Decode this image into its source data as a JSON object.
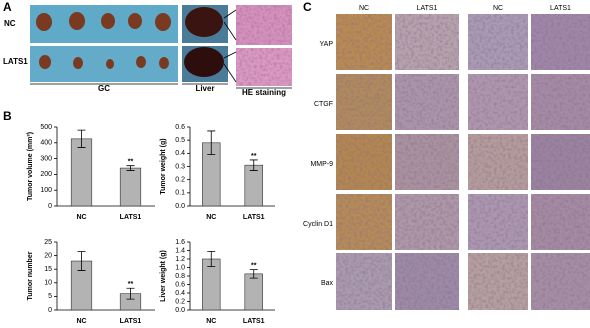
{
  "figure": {
    "panel_labels": [
      "A",
      "B",
      "C"
    ],
    "panel_a": {
      "row_labels": [
        "NC",
        "LATS1"
      ],
      "group_labels": [
        "GC",
        "Liver",
        "HE staining"
      ]
    },
    "panel_c": {
      "column_labels": [
        "NC",
        "LATS1",
        "NC",
        "LATS1"
      ],
      "row_labels": [
        "YAP",
        "CTGF",
        "MMP-9",
        "Cyclin D1",
        "Bax"
      ]
    }
  },
  "chart_data": [
    {
      "type": "bar",
      "ylabel": "Tumor volume (mm³)",
      "categories": [
        "NC",
        "LATS1"
      ],
      "values": [
        425,
        240
      ],
      "errors": [
        55,
        15
      ],
      "annotation": "**",
      "color": "#b3b3b3",
      "ylim": [
        0,
        500
      ],
      "yticks": [
        0,
        100,
        200,
        300,
        400,
        500
      ]
    },
    {
      "type": "bar",
      "ylabel": "Tumor weight (g)",
      "categories": [
        "NC",
        "LATS1"
      ],
      "values": [
        0.48,
        0.31
      ],
      "errors": [
        0.09,
        0.04
      ],
      "annotation": "**",
      "color": "#b3b3b3",
      "ylim": [
        0,
        0.6
      ],
      "yticks": [
        {
          "value": 0,
          "label": "0.0"
        },
        0.1,
        0.2,
        0.3,
        0.4,
        0.5,
        0.6
      ]
    },
    {
      "type": "bar",
      "ylabel": "Tumor number",
      "categories": [
        "NC",
        "LATS1"
      ],
      "values": [
        18,
        6
      ],
      "errors": [
        3.5,
        2
      ],
      "annotation": "**",
      "color": "#b3b3b3",
      "ylim": [
        0,
        25
      ],
      "yticks": [
        0,
        5,
        10,
        15,
        20,
        25
      ]
    },
    {
      "type": "bar",
      "ylabel": "Liver weight (g)",
      "categories": [
        "NC",
        "LATS1"
      ],
      "values": [
        1.2,
        0.85
      ],
      "errors": [
        0.18,
        0.1
      ],
      "annotation": "**",
      "color": "#b3b3b3",
      "ylim": [
        0,
        1.6
      ],
      "yticks": [
        {
          "value": 0,
          "label": "0.0"
        },
        0.2,
        0.4,
        0.6,
        0.8,
        {
          "value": 1,
          "label": "1.0"
        },
        1.2,
        1.4,
        1.6
      ]
    }
  ]
}
